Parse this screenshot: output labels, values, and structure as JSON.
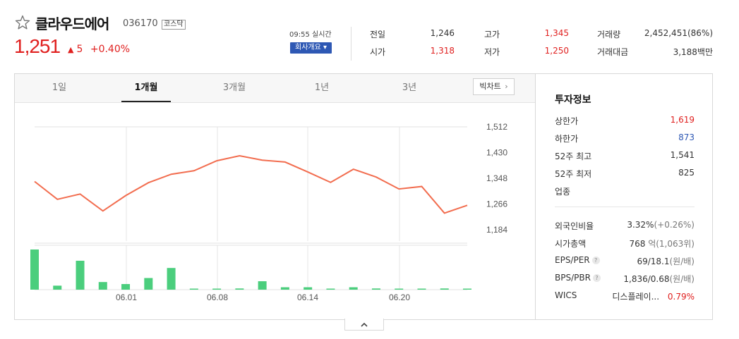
{
  "header": {
    "name": "클라우드에어",
    "code": "036170",
    "market": "코스닥",
    "price": "1,251",
    "change_symbol": "▲",
    "change": "5",
    "change_pct": "+0.40%",
    "realtime": "09:55 실시간",
    "company_info_button": "회사개요 ▾"
  },
  "quote": {
    "prev_close_label": "전일",
    "prev_close": "1,246",
    "open_label": "시가",
    "open": "1,318",
    "high_label": "고가",
    "high": "1,345",
    "low_label": "저가",
    "low": "1,250",
    "volume_label": "거래량",
    "volume": "2,452,451(86%)",
    "amount_label": "거래대금",
    "amount": "3,188백만"
  },
  "tabs": [
    "1일",
    "1개월",
    "3개월",
    "1년",
    "3년"
  ],
  "active_tab": "1개월",
  "big_chart_button": "빅차트",
  "chart_data": {
    "type": "line",
    "y_ticks": [
      "1,512",
      "1,430",
      "1,348",
      "1,266",
      "1,184"
    ],
    "ylim": [
      1184,
      1512
    ],
    "x_tick_labels": [
      "06.01",
      "06.08",
      "06.14",
      "06.20"
    ],
    "series": [
      {
        "values": [
          1338,
          1281,
          1298,
          1244,
          1293,
          1334,
          1361,
          1372,
          1404,
          1420,
          1406,
          1400,
          1368,
          1335,
          1377,
          1352,
          1314,
          1322,
          1237,
          1262
        ],
        "color": "#f26d4f"
      }
    ],
    "volume": {
      "color": "#4bce7d",
      "values": [
        100,
        10,
        72,
        19,
        14,
        29,
        54,
        2,
        1,
        3,
        21,
        6,
        6,
        2,
        6,
        3,
        2,
        1,
        3,
        2
      ]
    }
  },
  "invest": {
    "title": "투자정보",
    "rows": [
      {
        "label": "상한가",
        "value": "1,619",
        "style": "red"
      },
      {
        "label": "하한가",
        "value": "873",
        "style": "blue"
      },
      {
        "label": "52주 최고",
        "value": "1,541",
        "style": ""
      },
      {
        "label": "52주 최저",
        "value": "825",
        "style": ""
      },
      {
        "label": "업종",
        "value": "",
        "style": ""
      }
    ],
    "foreign_ratio_label": "외국인비율",
    "foreign_ratio": "3.32%",
    "foreign_ratio_change": "(+0.26%)",
    "market_cap_label": "시가총액",
    "market_cap": "768",
    "market_cap_unit": "억(1,063위)",
    "eps_per_label": "EPS/PER",
    "eps_per": "69/18.1",
    "eps_per_unit": "(원/배)",
    "bps_pbr_label": "BPS/PBR",
    "bps_pbr": "1,836/0.68",
    "bps_pbr_unit": "(원/배)",
    "wics_label": "WICS",
    "wics_sector": "디스플레이...",
    "wics_change": "0.79%"
  },
  "help_icon_text": "?",
  "colors": {
    "up": "#e0201f",
    "down": "#2e58b4",
    "line": "#f26d4f",
    "volume": "#4bce7d",
    "button": "#2e58b4"
  }
}
